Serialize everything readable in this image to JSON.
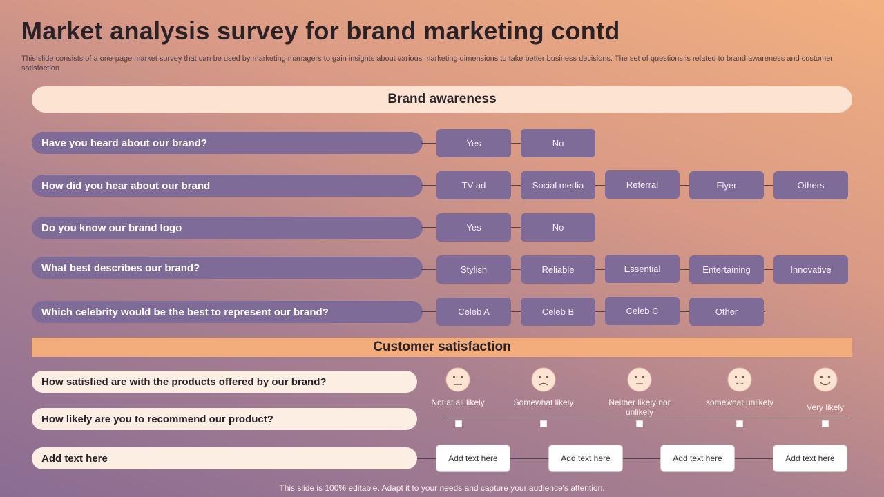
{
  "title": "Market analysis survey for brand marketing contd",
  "subtitle": "This slide consists of a one-page market survey that can be used by marketing managers to gain insights about various marketing dimensions to take better business decisions. The set of questions is related to brand awareness and customer satisfaction",
  "brand_awareness": {
    "heading": "Brand awareness",
    "questions": [
      {
        "question": "Have you heard about our brand?",
        "options": [
          "Yes",
          "No"
        ]
      },
      {
        "question": "How did you hear about our brand",
        "options": [
          "TV ad",
          "Social media",
          "Referral",
          "Flyer",
          "Others"
        ]
      },
      {
        "question": "Do you know our brand logo",
        "options": [
          "Yes",
          "No"
        ]
      },
      {
        "question": "What best describes our brand?",
        "options": [
          "Stylish",
          "Reliable",
          "Essential",
          "Entertaining",
          "Innovative"
        ]
      },
      {
        "question": "Which celebrity would be the best to represent our brand?",
        "options": [
          "Celeb A",
          "Celeb B",
          "Celeb C",
          "Other"
        ]
      }
    ]
  },
  "customer_satisfaction": {
    "heading": "Customer satisfaction",
    "questions": [
      "How satisfied are with the products offered by our brand?",
      "How likely are you  to recommend our product?",
      "Add  text here"
    ],
    "scale": [
      {
        "label": "Not at all likely",
        "icon": "very-sad-face-icon"
      },
      {
        "label": "Somewhat likely",
        "icon": "sad-face-icon"
      },
      {
        "label": "Neither likely nor unlikely",
        "icon": "neutral-face-icon"
      },
      {
        "label": "somewhat unlikely",
        "icon": "slight-smile-face-icon"
      },
      {
        "label": "Very likely",
        "icon": "happy-face-icon"
      }
    ],
    "text_boxes": [
      "Add text here",
      "Add text here",
      "Add text here",
      "Add text here"
    ]
  },
  "footer": "This slide is 100% editable. Adapt it to your needs and capture your audience's attention.",
  "colors": {
    "option_purple": "#7e6b98",
    "awareness_band": "#fde3d2",
    "satisfaction_band": "#f3ad7c",
    "face_fill": "#fde3d2"
  }
}
